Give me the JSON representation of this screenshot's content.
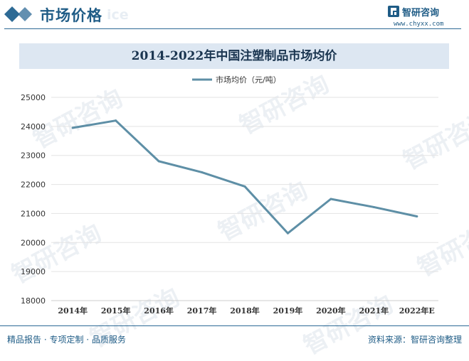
{
  "header": {
    "section_title": "市场价格",
    "ghost_text": "ice",
    "brand_name": "智研咨询",
    "brand_url": "www.chyxx.com"
  },
  "watermark": "智研咨询",
  "colors": {
    "accent": "#1f5c86",
    "title_band": "#dde7f2",
    "line": "#5e8fa6",
    "grid": "#e3e3e3"
  },
  "chart_data": {
    "type": "line",
    "title": "2014-2022年中国注塑制品市场均价",
    "xlabel": "",
    "ylabel": "",
    "categories": [
      "2014年",
      "2015年",
      "2016年",
      "2017年",
      "2018年",
      "2019年",
      "2020年",
      "2021年",
      "2022年E"
    ],
    "series": [
      {
        "name": "市场均价（元/吨）",
        "values": [
          23950,
          24200,
          22800,
          22420,
          21930,
          20320,
          21500,
          21220,
          20900
        ]
      }
    ],
    "ylim": [
      18000,
      25000
    ],
    "yticks": [
      18000,
      19000,
      20000,
      21000,
      22000,
      23000,
      24000,
      25000
    ],
    "grid": true,
    "legend": "top-center"
  },
  "footer": {
    "left": "精品报告 · 专项定制 · 品质服务",
    "right": "资料来源：智研咨询整理"
  }
}
